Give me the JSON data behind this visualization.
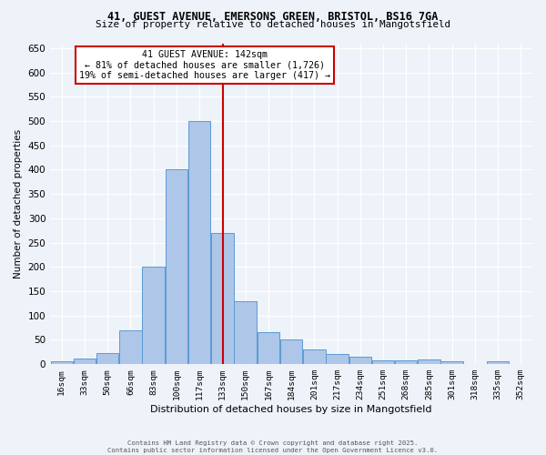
{
  "title_line1": "41, GUEST AVENUE, EMERSONS GREEN, BRISTOL, BS16 7GA",
  "title_line2": "Size of property relative to detached houses in Mangotsfield",
  "xlabel": "Distribution of detached houses by size in Mangotsfield",
  "ylabel": "Number of detached properties",
  "bin_labels": [
    "16sqm",
    "33sqm",
    "50sqm",
    "66sqm",
    "83sqm",
    "100sqm",
    "117sqm",
    "133sqm",
    "150sqm",
    "167sqm",
    "184sqm",
    "201sqm",
    "217sqm",
    "234sqm",
    "251sqm",
    "268sqm",
    "285sqm",
    "301sqm",
    "318sqm",
    "335sqm",
    "352sqm"
  ],
  "bin_edges": [
    0,
    1,
    2,
    3,
    4,
    5,
    6,
    7,
    8,
    9,
    10,
    11,
    12,
    13,
    14,
    15,
    16,
    17,
    18,
    19,
    20
  ],
  "bar_heights": [
    5,
    12,
    22,
    70,
    200,
    400,
    500,
    270,
    130,
    65,
    50,
    30,
    20,
    15,
    7,
    7,
    10,
    5,
    0,
    5,
    0
  ],
  "bar_color": "#aec6e8",
  "bar_edge_color": "#5b9bd5",
  "property_size_idx": 7.29,
  "vline_color": "#cc0000",
  "annotation_title": "41 GUEST AVENUE: 142sqm",
  "annotation_line1": "← 81% of detached houses are smaller (1,726)",
  "annotation_line2": "19% of semi-detached houses are larger (417) →",
  "annotation_box_color": "#cc0000",
  "ylim": [
    0,
    660
  ],
  "yticks": [
    0,
    50,
    100,
    150,
    200,
    250,
    300,
    350,
    400,
    450,
    500,
    550,
    600,
    650
  ],
  "footer_line1": "Contains HM Land Registry data © Crown copyright and database right 2025.",
  "footer_line2": "Contains public sector information licensed under the Open Government Licence v3.0.",
  "bg_color": "#eef2f9",
  "grid_color": "#ffffff"
}
